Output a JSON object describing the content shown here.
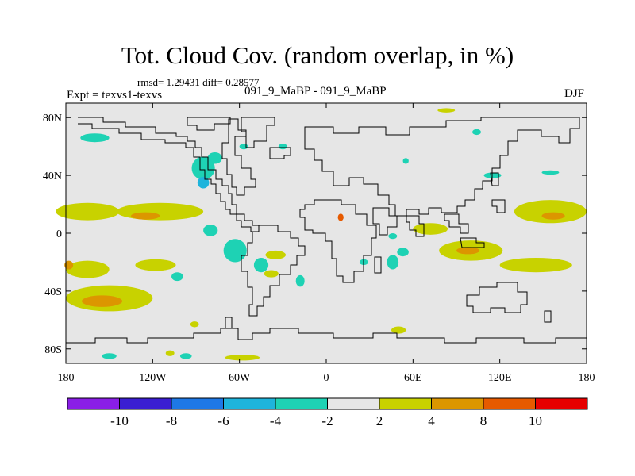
{
  "title": "Tot. Cloud Cov. (random overlap, in %)",
  "rmsd_line": "rmsd= 1.29431 diff= 0.28577",
  "expt_label": "Expt = texvs1-texvs",
  "period_label": "091_9_MaBP - 091_9_MaBP",
  "season_label": "DJF",
  "map": {
    "lon_range": [
      -180,
      180
    ],
    "lat_range": [
      -90,
      90
    ],
    "lat_ticks": [
      {
        "value": 80,
        "label": "80N"
      },
      {
        "value": 40,
        "label": "40N"
      },
      {
        "value": 0,
        "label": "0"
      },
      {
        "value": -40,
        "label": "40S"
      },
      {
        "value": -80,
        "label": "80S"
      }
    ],
    "lon_ticks": [
      {
        "value": -180,
        "label": "180"
      },
      {
        "value": -120,
        "label": "120W"
      },
      {
        "value": -60,
        "label": "60W"
      },
      {
        "value": 0,
        "label": "0"
      },
      {
        "value": 60,
        "label": "60E"
      },
      {
        "value": 120,
        "label": "120E"
      },
      {
        "value": 180,
        "label": "180"
      }
    ],
    "background_color": "#e6e6e6",
    "anomalies": [
      {
        "lon": -165,
        "lat": 15,
        "rlon": 22,
        "rlat": 6,
        "level": "2to4"
      },
      {
        "lon": -115,
        "lat": 15,
        "rlon": 30,
        "rlat": 6,
        "level": "2to4"
      },
      {
        "lon": -125,
        "lat": 12,
        "rlon": 10,
        "rlat": 2.5,
        "level": "4to8"
      },
      {
        "lon": 155,
        "lat": 15,
        "rlon": 25,
        "rlat": 8,
        "level": "2to4"
      },
      {
        "lon": 157,
        "lat": 12,
        "rlon": 8,
        "rlat": 2.5,
        "level": "4to8"
      },
      {
        "lon": 72,
        "lat": 3,
        "rlon": 12,
        "rlat": 4,
        "level": "2to4"
      },
      {
        "lon": 100,
        "lat": -12,
        "rlon": 22,
        "rlat": 7,
        "level": "2to4"
      },
      {
        "lon": 98,
        "lat": -12,
        "rlon": 8,
        "rlat": 2.5,
        "level": "4to8"
      },
      {
        "lon": 145,
        "lat": -22,
        "rlon": 25,
        "rlat": 5,
        "level": "2to4"
      },
      {
        "lon": -150,
        "lat": -45,
        "rlon": 30,
        "rlat": 9,
        "level": "2to4"
      },
      {
        "lon": -155,
        "lat": -47,
        "rlon": 14,
        "rlat": 4,
        "level": "4to8"
      },
      {
        "lon": -165,
        "lat": -25,
        "rlon": 15,
        "rlat": 6,
        "level": "2to4"
      },
      {
        "lon": -178,
        "lat": -22,
        "rlon": 3,
        "rlat": 3,
        "level": "4to8"
      },
      {
        "lon": -118,
        "lat": -22,
        "rlon": 14,
        "rlat": 4,
        "level": "2to4"
      },
      {
        "lon": -35,
        "lat": -15,
        "rlon": 7,
        "rlat": 3,
        "level": "2to4"
      },
      {
        "lon": -38,
        "lat": -28,
        "rlon": 5,
        "rlat": 2.5,
        "level": "2to4"
      },
      {
        "lon": 10,
        "lat": 11,
        "rlon": 2,
        "rlat": 2.5,
        "level": "8to10"
      },
      {
        "lon": 50,
        "lat": -67,
        "rlon": 5,
        "rlat": 2.5,
        "level": "2to4"
      },
      {
        "lon": -108,
        "lat": -83,
        "rlon": 3,
        "rlat": 2,
        "level": "2to4"
      },
      {
        "lon": -91,
        "lat": -63,
        "rlon": 3,
        "rlat": 2,
        "level": "2to4"
      },
      {
        "lon": -58,
        "lat": -86,
        "rlon": 12,
        "rlat": 2,
        "level": "2to4"
      },
      {
        "lon": 83,
        "lat": 85,
        "rlon": 6,
        "rlat": 1.5,
        "level": "2to4"
      },
      {
        "lon": -85,
        "lat": 45,
        "rlon": 8,
        "rlat": 8,
        "level": "m4tom2"
      },
      {
        "lon": -77,
        "lat": 52,
        "rlon": 5,
        "rlat": 4,
        "level": "m4tom2"
      },
      {
        "lon": -160,
        "lat": 66,
        "rlon": 10,
        "rlat": 3,
        "level": "m4tom2"
      },
      {
        "lon": -80,
        "lat": 2,
        "rlon": 5,
        "rlat": 4,
        "level": "m4tom2"
      },
      {
        "lon": -63,
        "lat": -12,
        "rlon": 8,
        "rlat": 8,
        "level": "m4tom2"
      },
      {
        "lon": -45,
        "lat": -22,
        "rlon": 5,
        "rlat": 5,
        "level": "m4tom2"
      },
      {
        "lon": -18,
        "lat": -33,
        "rlon": 3,
        "rlat": 4,
        "level": "m4tom2"
      },
      {
        "lon": -103,
        "lat": -30,
        "rlon": 4,
        "rlat": 3,
        "level": "m4tom2"
      },
      {
        "lon": -85,
        "lat": 35,
        "rlon": 4,
        "rlat": 4,
        "level": "m6tom4"
      },
      {
        "lon": 46,
        "lat": -20,
        "rlon": 4,
        "rlat": 5,
        "level": "m4tom2"
      },
      {
        "lon": 53,
        "lat": -13,
        "rlon": 4,
        "rlat": 3,
        "level": "m4tom2"
      },
      {
        "lon": 46,
        "lat": -2,
        "rlon": 3,
        "rlat": 2,
        "level": "m4tom2"
      },
      {
        "lon": 26,
        "lat": -20,
        "rlon": 3,
        "rlat": 2,
        "level": "m4tom2"
      },
      {
        "lon": -150,
        "lat": -85,
        "rlon": 5,
        "rlat": 2,
        "level": "m4tom2"
      },
      {
        "lon": -97,
        "lat": -85,
        "rlon": 4,
        "rlat": 2,
        "level": "m4tom2"
      },
      {
        "lon": -57,
        "lat": 60,
        "rlon": 3,
        "rlat": 2,
        "level": "m4tom2"
      },
      {
        "lon": 55,
        "lat": 50,
        "rlon": 2,
        "rlat": 2,
        "level": "m4tom2"
      },
      {
        "lon": 115,
        "lat": 40,
        "rlon": 6,
        "rlat": 2,
        "level": "m4tom2"
      },
      {
        "lon": 155,
        "lat": 42,
        "rlon": 6,
        "rlat": 1.5,
        "level": "m4tom2"
      },
      {
        "lon": 104,
        "lat": 70,
        "rlon": 3,
        "rlat": 2,
        "level": "m4tom2"
      },
      {
        "lon": -30,
        "lat": 60,
        "rlon": 3,
        "rlat": 2,
        "level": "m4tom2"
      }
    ]
  },
  "colorbar": {
    "colors": [
      "#8a1ee6",
      "#3a1ed2",
      "#1e78e6",
      "#1eb4dc",
      "#1ed2b4",
      "#e6e6e6",
      "#c8d200",
      "#dc9600",
      "#e65a00",
      "#e60000"
    ],
    "labels": [
      "-10",
      "-8",
      "-6",
      "-4",
      "-2",
      "2",
      "4",
      "8",
      "10"
    ],
    "level_colors": {
      "m6tom4": "#1eb4dc",
      "m4tom2": "#1ed2b4",
      "2to4": "#c8d200",
      "4to8": "#dc9600",
      "8to10": "#e65a00"
    }
  }
}
